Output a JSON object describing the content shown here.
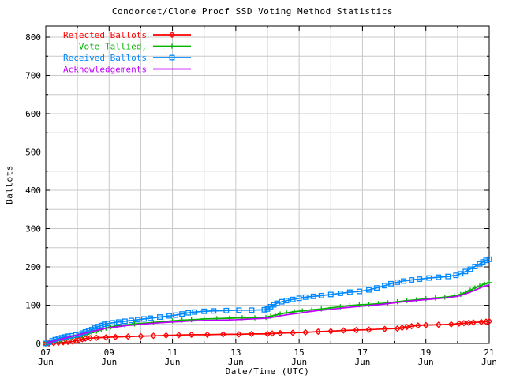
{
  "window": {
    "background": "#ffffff"
  },
  "chart_data": {
    "type": "line",
    "title": "Condorcet/Clone Proof SSD Voting Method Statistics",
    "xlabel": "Date/Time (UTC)",
    "ylabel": "Ballots",
    "x_unit_days_from": "07 Jun 00:00 UTC",
    "xlim_days": [
      0,
      14
    ],
    "ylim": [
      0,
      828
    ],
    "grid": {
      "on": true,
      "x_step_days": 1,
      "y_step": 50,
      "color": "#c8c8c8"
    },
    "axis_color": "#000000",
    "legend_position": "top-left-inside",
    "y_ticks": [
      {
        "value": 0,
        "label": "0"
      },
      {
        "value": 100,
        "label": "100"
      },
      {
        "value": 200,
        "label": "200"
      },
      {
        "value": 300,
        "label": "300"
      },
      {
        "value": 400,
        "label": "400"
      },
      {
        "value": 500,
        "label": "500"
      },
      {
        "value": 600,
        "label": "600"
      },
      {
        "value": 700,
        "label": "700"
      },
      {
        "value": 800,
        "label": "800"
      }
    ],
    "x_ticks": [
      {
        "day": 0,
        "label_day": "07",
        "label_month": "Jun"
      },
      {
        "day": 2,
        "label_day": "09",
        "label_month": "Jun"
      },
      {
        "day": 4,
        "label_day": "11",
        "label_month": "Jun"
      },
      {
        "day": 6,
        "label_day": "13",
        "label_month": "Jun"
      },
      {
        "day": 8,
        "label_day": "15",
        "label_month": "Jun"
      },
      {
        "day": 10,
        "label_day": "17",
        "label_month": "Jun"
      },
      {
        "day": 12,
        "label_day": "19",
        "label_month": "Jun"
      },
      {
        "day": 14,
        "label_day": "21",
        "label_month": "Jun"
      }
    ],
    "x_minor_tick_days": [
      1,
      3,
      5,
      7,
      9,
      11,
      13
    ],
    "series": [
      {
        "name": "Rejected Ballots",
        "color": "#ff0000",
        "marker": "diamond",
        "points": [
          [
            0,
            0
          ],
          [
            0.1,
            0
          ],
          [
            0.25,
            1
          ],
          [
            0.4,
            2
          ],
          [
            0.55,
            3
          ],
          [
            0.7,
            4
          ],
          [
            0.85,
            5
          ],
          [
            0.95,
            7
          ],
          [
            1.05,
            9
          ],
          [
            1.15,
            11
          ],
          [
            1.25,
            13
          ],
          [
            1.4,
            14
          ],
          [
            1.6,
            15
          ],
          [
            1.9,
            16
          ],
          [
            2.2,
            17
          ],
          [
            2.6,
            18
          ],
          [
            3.0,
            19
          ],
          [
            3.4,
            20
          ],
          [
            3.8,
            21
          ],
          [
            4.2,
            22
          ],
          [
            4.6,
            23
          ],
          [
            5.1,
            23
          ],
          [
            5.6,
            24
          ],
          [
            6.1,
            24
          ],
          [
            6.5,
            25
          ],
          [
            7.0,
            25
          ],
          [
            7.15,
            26
          ],
          [
            7.4,
            27
          ],
          [
            7.8,
            28
          ],
          [
            8.2,
            29
          ],
          [
            8.6,
            31
          ],
          [
            9.0,
            32
          ],
          [
            9.4,
            34
          ],
          [
            9.8,
            35
          ],
          [
            10.2,
            36
          ],
          [
            10.7,
            38
          ],
          [
            11.1,
            39
          ],
          [
            11.25,
            41
          ],
          [
            11.4,
            43
          ],
          [
            11.55,
            45
          ],
          [
            11.75,
            47
          ],
          [
            12.0,
            48
          ],
          [
            12.4,
            49
          ],
          [
            12.8,
            50
          ],
          [
            13.05,
            52
          ],
          [
            13.2,
            53
          ],
          [
            13.35,
            54
          ],
          [
            13.5,
            55
          ],
          [
            13.75,
            56
          ],
          [
            13.9,
            57
          ],
          [
            14,
            58
          ]
        ]
      },
      {
        "name": "Vote Tallied,",
        "color": "#00b400",
        "marker": "plus",
        "points": [
          [
            0,
            0
          ],
          [
            0.15,
            3
          ],
          [
            0.3,
            6
          ],
          [
            0.45,
            9
          ],
          [
            0.6,
            11
          ],
          [
            0.8,
            14
          ],
          [
            1.0,
            17
          ],
          [
            1.15,
            20
          ],
          [
            1.3,
            24
          ],
          [
            1.45,
            28
          ],
          [
            1.6,
            32
          ],
          [
            1.75,
            36
          ],
          [
            1.9,
            40
          ],
          [
            2.05,
            43
          ],
          [
            2.25,
            46
          ],
          [
            2.5,
            48
          ],
          [
            2.8,
            51
          ],
          [
            3.1,
            53
          ],
          [
            3.4,
            55
          ],
          [
            3.7,
            57
          ],
          [
            4.0,
            59
          ],
          [
            4.3,
            61
          ],
          [
            4.6,
            62
          ],
          [
            5.0,
            64
          ],
          [
            5.4,
            65
          ],
          [
            5.8,
            66
          ],
          [
            6.2,
            67
          ],
          [
            6.6,
            67
          ],
          [
            6.95,
            68
          ],
          [
            7.1,
            71
          ],
          [
            7.25,
            74
          ],
          [
            7.4,
            77
          ],
          [
            7.6,
            80
          ],
          [
            7.85,
            83
          ],
          [
            8.1,
            85
          ],
          [
            8.4,
            88
          ],
          [
            8.7,
            90
          ],
          [
            9.0,
            93
          ],
          [
            9.3,
            96
          ],
          [
            9.6,
            99
          ],
          [
            9.9,
            101
          ],
          [
            10.2,
            102
          ],
          [
            10.5,
            104
          ],
          [
            10.8,
            106
          ],
          [
            11.1,
            109
          ],
          [
            11.4,
            112
          ],
          [
            11.7,
            114
          ],
          [
            12.0,
            117
          ],
          [
            12.3,
            119
          ],
          [
            12.6,
            121
          ],
          [
            12.9,
            124
          ],
          [
            13.1,
            128
          ],
          [
            13.25,
            133
          ],
          [
            13.4,
            139
          ],
          [
            13.55,
            145
          ],
          [
            13.7,
            150
          ],
          [
            13.85,
            155
          ],
          [
            14,
            159
          ]
        ]
      },
      {
        "name": "Received Ballots",
        "color": "#0088ff",
        "marker": "square",
        "points": [
          [
            0,
            0
          ],
          [
            0.1,
            3
          ],
          [
            0.2,
            7
          ],
          [
            0.3,
            10
          ],
          [
            0.4,
            13
          ],
          [
            0.5,
            15
          ],
          [
            0.6,
            17
          ],
          [
            0.7,
            19
          ],
          [
            0.8,
            20
          ],
          [
            0.95,
            22
          ],
          [
            1.05,
            24
          ],
          [
            1.15,
            27
          ],
          [
            1.25,
            30
          ],
          [
            1.35,
            33
          ],
          [
            1.45,
            36
          ],
          [
            1.55,
            40
          ],
          [
            1.65,
            44
          ],
          [
            1.75,
            47
          ],
          [
            1.85,
            50
          ],
          [
            1.95,
            52
          ],
          [
            2.1,
            54
          ],
          [
            2.3,
            56
          ],
          [
            2.5,
            58
          ],
          [
            2.7,
            60
          ],
          [
            2.9,
            62
          ],
          [
            3.1,
            64
          ],
          [
            3.3,
            66
          ],
          [
            3.6,
            69
          ],
          [
            3.9,
            72
          ],
          [
            4.1,
            74
          ],
          [
            4.3,
            77
          ],
          [
            4.5,
            80
          ],
          [
            4.7,
            82
          ],
          [
            5.0,
            84
          ],
          [
            5.3,
            85
          ],
          [
            5.7,
            86
          ],
          [
            6.1,
            87
          ],
          [
            6.5,
            87
          ],
          [
            6.9,
            88
          ],
          [
            7.0,
            90
          ],
          [
            7.1,
            96
          ],
          [
            7.2,
            101
          ],
          [
            7.3,
            105
          ],
          [
            7.45,
            109
          ],
          [
            7.6,
            112
          ],
          [
            7.8,
            115
          ],
          [
            8.0,
            118
          ],
          [
            8.2,
            121
          ],
          [
            8.45,
            123
          ],
          [
            8.7,
            125
          ],
          [
            9.0,
            128
          ],
          [
            9.3,
            131
          ],
          [
            9.6,
            134
          ],
          [
            9.9,
            136
          ],
          [
            10.2,
            140
          ],
          [
            10.45,
            145
          ],
          [
            10.7,
            151
          ],
          [
            10.9,
            156
          ],
          [
            11.1,
            160
          ],
          [
            11.3,
            163
          ],
          [
            11.55,
            166
          ],
          [
            11.8,
            168
          ],
          [
            12.1,
            171
          ],
          [
            12.4,
            173
          ],
          [
            12.7,
            175
          ],
          [
            12.95,
            178
          ],
          [
            13.1,
            182
          ],
          [
            13.25,
            188
          ],
          [
            13.4,
            194
          ],
          [
            13.55,
            201
          ],
          [
            13.7,
            208
          ],
          [
            13.8,
            213
          ],
          [
            13.9,
            217
          ],
          [
            14,
            220
          ]
        ]
      },
      {
        "name": "Acknowledgements",
        "color": "#bf00ff",
        "marker": "none",
        "points": [
          [
            0,
            0
          ],
          [
            0.2,
            5
          ],
          [
            0.4,
            10
          ],
          [
            0.6,
            14
          ],
          [
            0.8,
            18
          ],
          [
            1.0,
            22
          ],
          [
            1.2,
            26
          ],
          [
            1.4,
            30
          ],
          [
            1.6,
            34
          ],
          [
            1.8,
            38
          ],
          [
            2.0,
            41
          ],
          [
            2.3,
            44
          ],
          [
            2.6,
            47
          ],
          [
            3.0,
            50
          ],
          [
            3.4,
            53
          ],
          [
            3.8,
            55
          ],
          [
            4.2,
            57
          ],
          [
            4.6,
            59
          ],
          [
            5.0,
            60
          ],
          [
            5.5,
            61
          ],
          [
            6.0,
            62
          ],
          [
            6.5,
            64
          ],
          [
            7.0,
            66
          ],
          [
            7.2,
            69
          ],
          [
            7.4,
            72
          ],
          [
            7.7,
            76
          ],
          [
            8.0,
            79
          ],
          [
            8.3,
            83
          ],
          [
            8.6,
            86
          ],
          [
            9.0,
            89
          ],
          [
            9.4,
            93
          ],
          [
            9.8,
            96
          ],
          [
            10.2,
            99
          ],
          [
            10.6,
            102
          ],
          [
            11.0,
            106
          ],
          [
            11.4,
            110
          ],
          [
            11.8,
            113
          ],
          [
            12.2,
            116
          ],
          [
            12.6,
            119
          ],
          [
            13.0,
            123
          ],
          [
            13.2,
            128
          ],
          [
            13.4,
            134
          ],
          [
            13.6,
            141
          ],
          [
            13.8,
            148
          ],
          [
            14,
            153
          ]
        ]
      }
    ]
  }
}
